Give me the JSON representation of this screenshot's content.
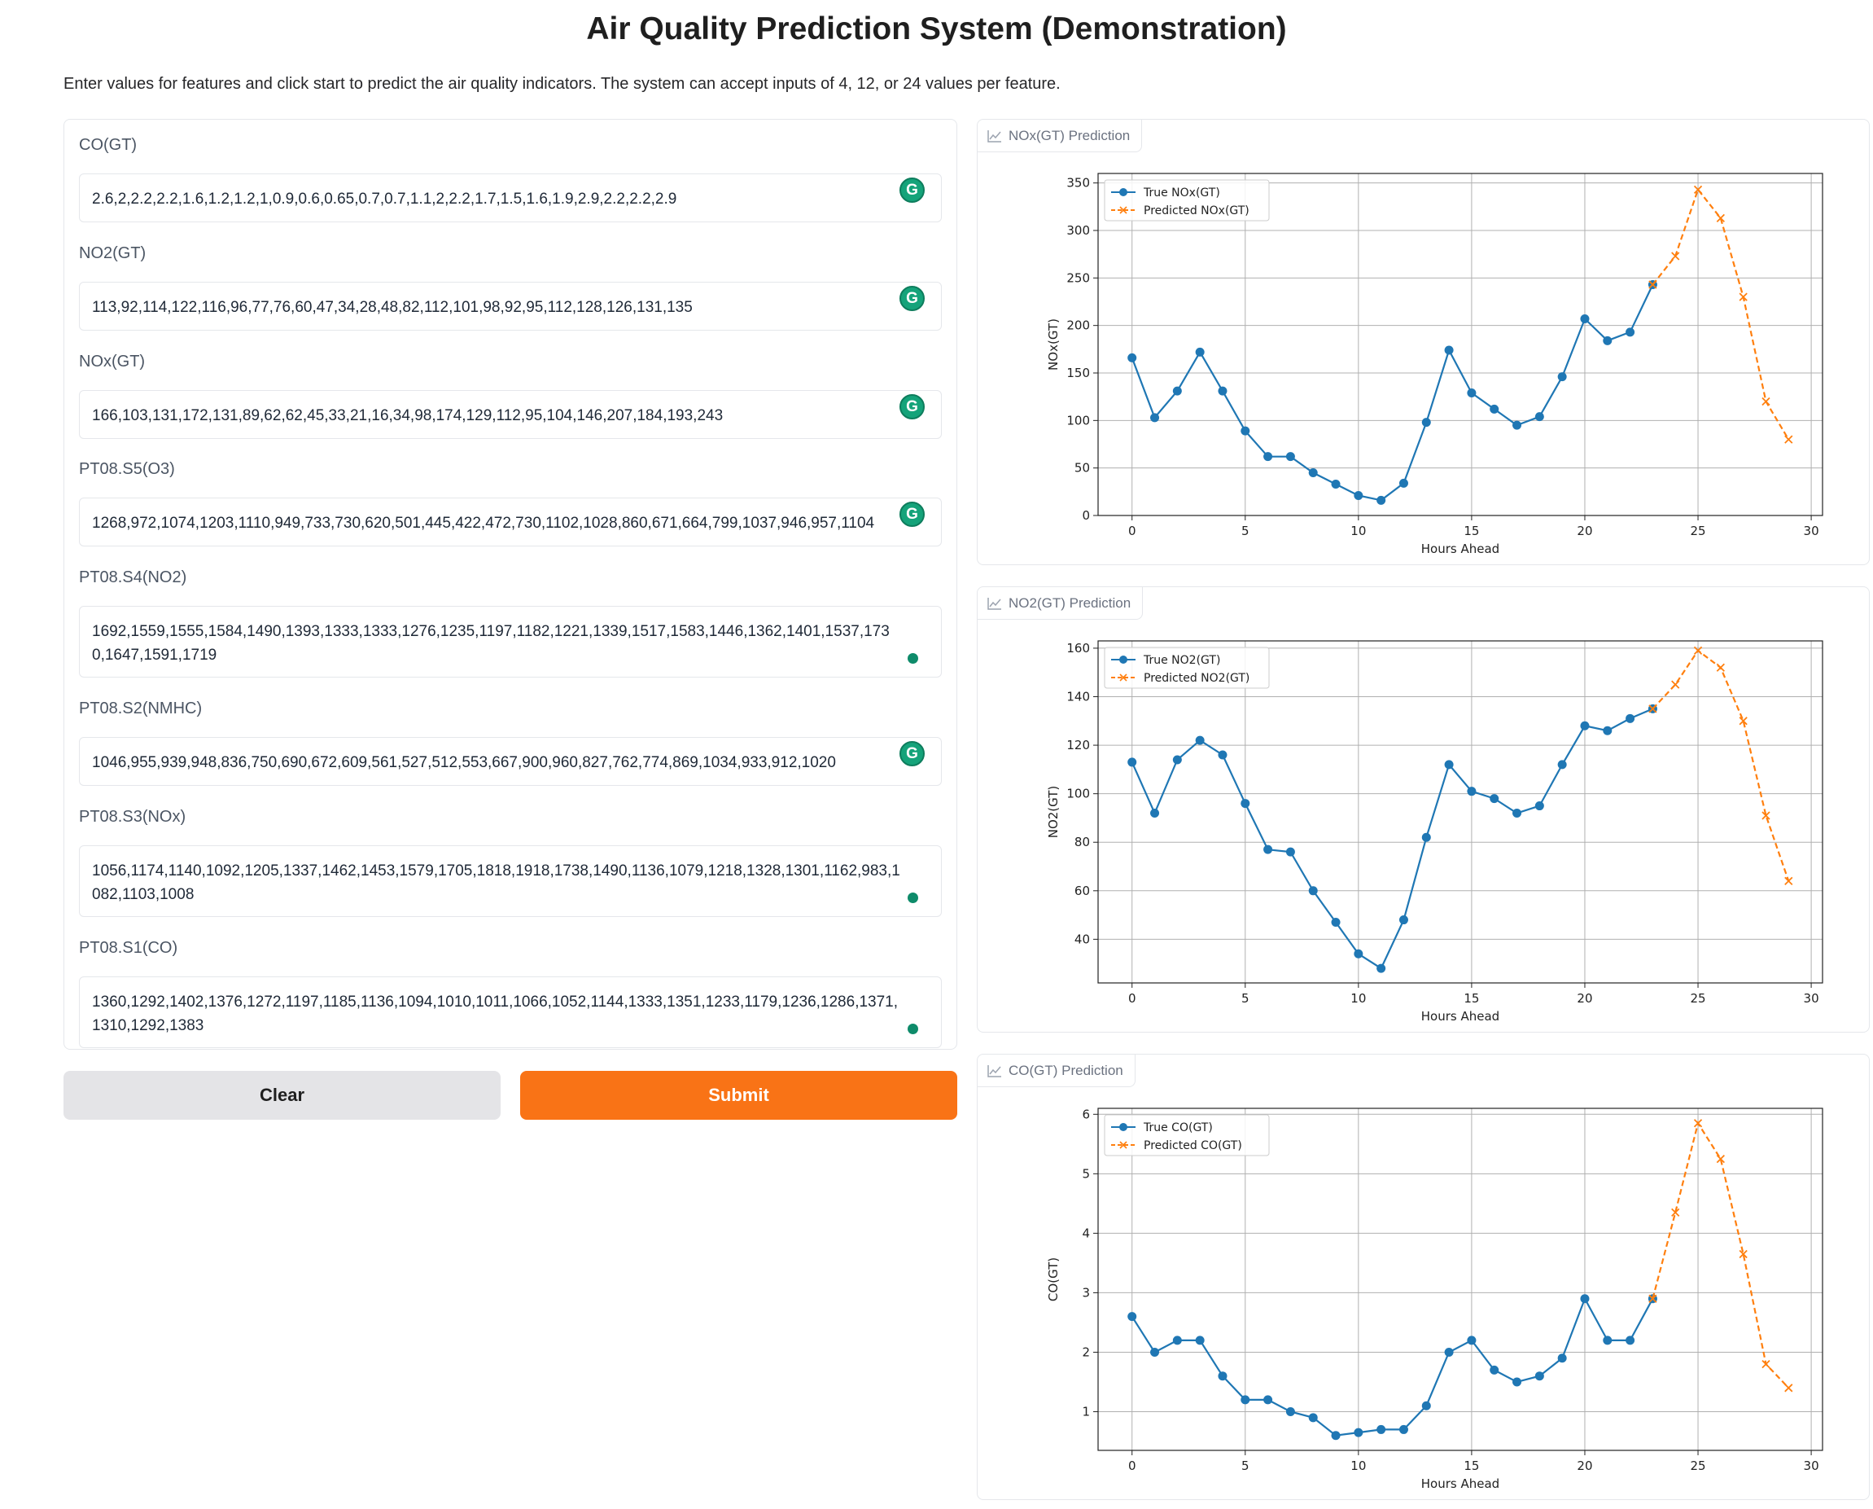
{
  "header": {
    "title": "Air Quality Prediction System (Demonstration)",
    "description": "Enter values for features and click start to predict the air quality indicators. The system can accept inputs of 4, 12, or 24 values per feature."
  },
  "inputs": {
    "co": {
      "label": "CO(GT)",
      "value": "2.6,2,2.2,2.2,1.6,1.2,1.2,1,0.9,0.6,0.65,0.7,0.7,1.1,2,2.2,1.7,1.5,1.6,1.9,2.9,2.2,2.2,2.9"
    },
    "no2": {
      "label": "NO2(GT)",
      "value": "113,92,114,122,116,96,77,76,60,47,34,28,48,82,112,101,98,92,95,112,128,126,131,135"
    },
    "nox": {
      "label": "NOx(GT)",
      "value": "166,103,131,172,131,89,62,62,45,33,21,16,34,98,174,129,112,95,104,146,207,184,193,243"
    },
    "o3": {
      "label": "PT08.S5(O3)",
      "value": "1268,972,1074,1203,1110,949,733,730,620,501,445,422,472,730,1102,1028,860,671,664,799,1037,946,957,1104"
    },
    "s4": {
      "label": "PT08.S4(NO2)",
      "value": "1692,1559,1555,1584,1490,1393,1333,1333,1276,1235,1197,1182,1221,1339,1517,1583,1446,1362,1401,1537,1730,1647,1591,1719"
    },
    "s2": {
      "label": "PT08.S2(NMHC)",
      "value": "1046,955,939,948,836,750,690,672,609,561,527,512,553,667,900,960,827,762,774,869,1034,933,912,1020"
    },
    "s3": {
      "label": "PT08.S3(NOx)",
      "value": "1056,1174,1140,1092,1205,1337,1462,1453,1579,1705,1818,1918,1738,1490,1136,1079,1218,1328,1301,1162,983,1082,1103,1008"
    },
    "s1": {
      "label": "PT08.S1(CO)",
      "value": "1360,1292,1402,1376,1272,1197,1185,1136,1094,1010,1011,1066,1052,1144,1333,1351,1233,1179,1236,1286,1371,1310,1292,1383"
    }
  },
  "buttons": {
    "clear": "Clear",
    "submit": "Submit"
  },
  "colors": {
    "accent": "#f97316",
    "true_series": "#1f77b4",
    "pred_series": "#ff7f0e"
  },
  "chart_data": [
    {
      "panel_label": "NOx(GT) Prediction",
      "type": "line",
      "xlabel": "Hours Ahead",
      "ylabel": "NOx(GT)",
      "xlim": [
        -1.5,
        30.5
      ],
      "ylim": [
        0,
        360
      ],
      "xticks": [
        0,
        5,
        10,
        15,
        20,
        25,
        30
      ],
      "yticks": [
        0,
        50,
        100,
        150,
        200,
        250,
        300,
        350
      ],
      "grid": true,
      "legend_position": "top-left",
      "series": [
        {
          "name": "True NOx(GT)",
          "style": "solid-dot",
          "x": [
            0,
            1,
            2,
            3,
            4,
            5,
            6,
            7,
            8,
            9,
            10,
            11,
            12,
            13,
            14,
            15,
            16,
            17,
            18,
            19,
            20,
            21,
            22,
            23
          ],
          "values": [
            166,
            103,
            131,
            172,
            131,
            89,
            62,
            62,
            45,
            33,
            21,
            16,
            34,
            98,
            174,
            129,
            112,
            95,
            104,
            146,
            207,
            184,
            193,
            243
          ]
        },
        {
          "name": "Predicted NOx(GT)",
          "style": "dashed-x",
          "x": [
            23,
            24,
            25,
            26,
            27,
            28,
            29
          ],
          "values": [
            243,
            273,
            343,
            313,
            230,
            120,
            80
          ]
        }
      ]
    },
    {
      "panel_label": "NO2(GT) Prediction",
      "type": "line",
      "xlabel": "Hours Ahead",
      "ylabel": "NO2(GT)",
      "xlim": [
        -1.5,
        30.5
      ],
      "ylim": [
        22,
        163
      ],
      "xticks": [
        0,
        5,
        10,
        15,
        20,
        25,
        30
      ],
      "yticks": [
        40,
        60,
        80,
        100,
        120,
        140,
        160
      ],
      "grid": true,
      "legend_position": "top-left",
      "series": [
        {
          "name": "True NO2(GT)",
          "style": "solid-dot",
          "x": [
            0,
            1,
            2,
            3,
            4,
            5,
            6,
            7,
            8,
            9,
            10,
            11,
            12,
            13,
            14,
            15,
            16,
            17,
            18,
            19,
            20,
            21,
            22,
            23
          ],
          "values": [
            113,
            92,
            114,
            122,
            116,
            96,
            77,
            76,
            60,
            47,
            34,
            28,
            48,
            82,
            112,
            101,
            98,
            92,
            95,
            112,
            128,
            126,
            131,
            135
          ]
        },
        {
          "name": "Predicted NO2(GT)",
          "style": "dashed-x",
          "x": [
            23,
            24,
            25,
            26,
            27,
            28,
            29
          ],
          "values": [
            135,
            145,
            159,
            152,
            130,
            91,
            64
          ]
        }
      ]
    },
    {
      "panel_label": "CO(GT) Prediction",
      "type": "line",
      "xlabel": "Hours Ahead",
      "ylabel": "CO(GT)",
      "xlim": [
        -1.5,
        30.5
      ],
      "ylim": [
        0.35,
        6.1
      ],
      "xticks": [
        0,
        5,
        10,
        15,
        20,
        25,
        30
      ],
      "yticks": [
        1,
        2,
        3,
        4,
        5,
        6
      ],
      "grid": true,
      "legend_position": "top-left",
      "series": [
        {
          "name": "True CO(GT)",
          "style": "solid-dot",
          "x": [
            0,
            1,
            2,
            3,
            4,
            5,
            6,
            7,
            8,
            9,
            10,
            11,
            12,
            13,
            14,
            15,
            16,
            17,
            18,
            19,
            20,
            21,
            22,
            23
          ],
          "values": [
            2.6,
            2,
            2.2,
            2.2,
            1.6,
            1.2,
            1.2,
            1,
            0.9,
            0.6,
            0.65,
            0.7,
            0.7,
            1.1,
            2,
            2.2,
            1.7,
            1.5,
            1.6,
            1.9,
            2.9,
            2.2,
            2.2,
            2.9
          ]
        },
        {
          "name": "Predicted CO(GT)",
          "style": "dashed-x",
          "x": [
            23,
            24,
            25,
            26,
            27,
            28,
            29
          ],
          "values": [
            2.9,
            4.35,
            5.85,
            5.25,
            3.65,
            1.8,
            1.4
          ]
        }
      ]
    }
  ]
}
